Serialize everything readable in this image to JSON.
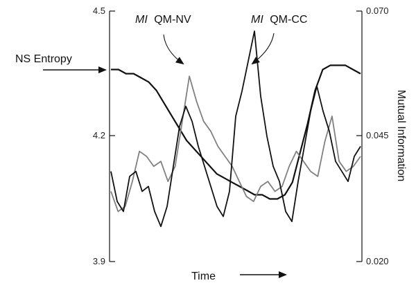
{
  "chart_data": {
    "type": "line",
    "title": "",
    "xlabel": "Time",
    "ylabel_left": "NS Entropy",
    "ylabel_right": "Mutual Information",
    "x_has_ticks": false,
    "y_left_ticks": [
      "4.5",
      "4.2",
      "3.9"
    ],
    "y_left_range": [
      3.9,
      4.5
    ],
    "y_right_ticks": [
      "0.070",
      "0.045",
      "0.020"
    ],
    "y_right_range": [
      0.02,
      0.07
    ],
    "grid": false,
    "legend": "none",
    "annotations": [
      {
        "italic": "MI",
        "text": "QM-NV",
        "points_to": "QM-NV"
      },
      {
        "italic": "MI",
        "text": "QM-CC",
        "points_to": "QM-CC"
      }
    ],
    "series": [
      {
        "name": "NS Entropy",
        "axis": "left",
        "color": "#111111",
        "values": [
          4.36,
          4.36,
          4.35,
          4.35,
          4.34,
          4.33,
          4.31,
          4.28,
          4.25,
          4.22,
          4.19,
          4.17,
          4.15,
          4.13,
          4.11,
          4.1,
          4.09,
          4.08,
          4.07,
          4.06,
          4.06,
          4.05,
          4.05,
          4.06,
          4.09,
          4.16,
          4.23,
          4.31,
          4.36,
          4.37,
          4.37,
          4.37,
          4.36,
          4.35
        ]
      },
      {
        "name": "QM-NV",
        "axis": "right",
        "color": "#808080",
        "values": [
          0.034,
          0.03,
          0.031,
          0.036,
          0.042,
          0.041,
          0.039,
          0.04,
          0.036,
          0.039,
          0.048,
          0.057,
          0.052,
          0.048,
          0.046,
          0.043,
          0.041,
          0.039,
          0.036,
          0.033,
          0.032,
          0.035,
          0.036,
          0.034,
          0.035,
          0.039,
          0.042,
          0.04,
          0.038,
          0.037,
          0.044,
          0.049,
          0.04,
          0.038,
          0.039,
          0.041
        ]
      },
      {
        "name": "QM-CC",
        "axis": "right",
        "color": "#111111",
        "values": [
          0.038,
          0.032,
          0.03,
          0.037,
          0.038,
          0.034,
          0.035,
          0.03,
          0.027,
          0.031,
          0.039,
          0.047,
          0.051,
          0.048,
          0.043,
          0.039,
          0.035,
          0.031,
          0.029,
          0.034,
          0.049,
          0.054,
          0.06,
          0.066,
          0.053,
          0.045,
          0.039,
          0.036,
          0.03,
          0.028,
          0.036,
          0.043,
          0.05,
          0.055,
          0.05,
          0.046,
          0.04,
          0.038,
          0.036,
          0.041,
          0.043
        ]
      }
    ]
  }
}
